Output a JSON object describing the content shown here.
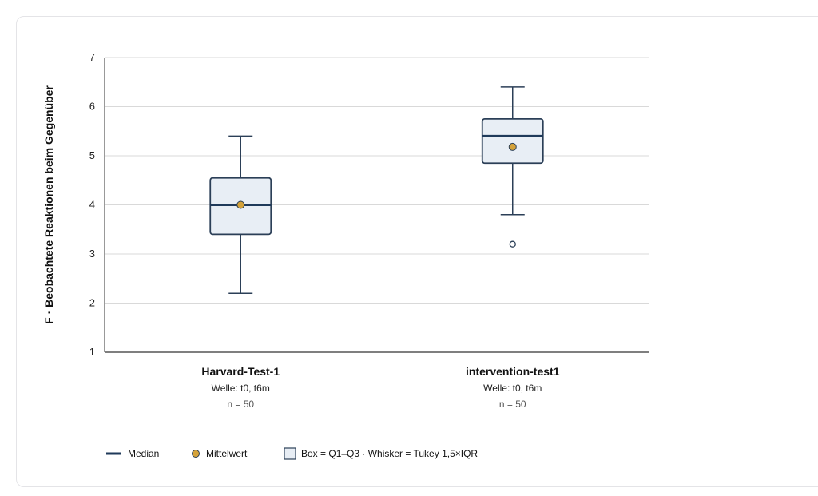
{
  "chart_data": {
    "type": "boxplot",
    "ylabel": "F · Beobachtete Reaktionen beim Gegenüber",
    "ylim": [
      1,
      7
    ],
    "yticks": [
      1,
      2,
      3,
      4,
      5,
      6,
      7
    ],
    "grid": true,
    "groups": [
      {
        "name": "Harvard-Test-1",
        "wave": "Welle: t0, t6m",
        "n": "n = 50",
        "whisker_low": 2.2,
        "q1": 3.4,
        "median": 4.0,
        "q3": 4.55,
        "whisker_high": 5.4,
        "mean": 4.0,
        "outliers": []
      },
      {
        "name": "intervention-test1",
        "wave": "Welle: t0, t6m",
        "n": "n = 50",
        "whisker_low": 3.8,
        "q1": 4.85,
        "median": 5.4,
        "q3": 5.75,
        "whisker_high": 6.4,
        "mean": 5.18,
        "outliers": [
          3.2
        ]
      }
    ],
    "legend": {
      "median": "Median",
      "mean": "Mittelwert",
      "box": "Box = Q1–Q3 · Whisker = Tukey 1,5×IQR"
    },
    "legend_position": "bottom-left"
  },
  "colors": {
    "box_stroke": "#2b3f57",
    "box_fill": "#e8eef5",
    "median": "#1f3a5a",
    "mean": "#d4a23a",
    "grid": "#d9d9d9",
    "axis": "#333333"
  }
}
